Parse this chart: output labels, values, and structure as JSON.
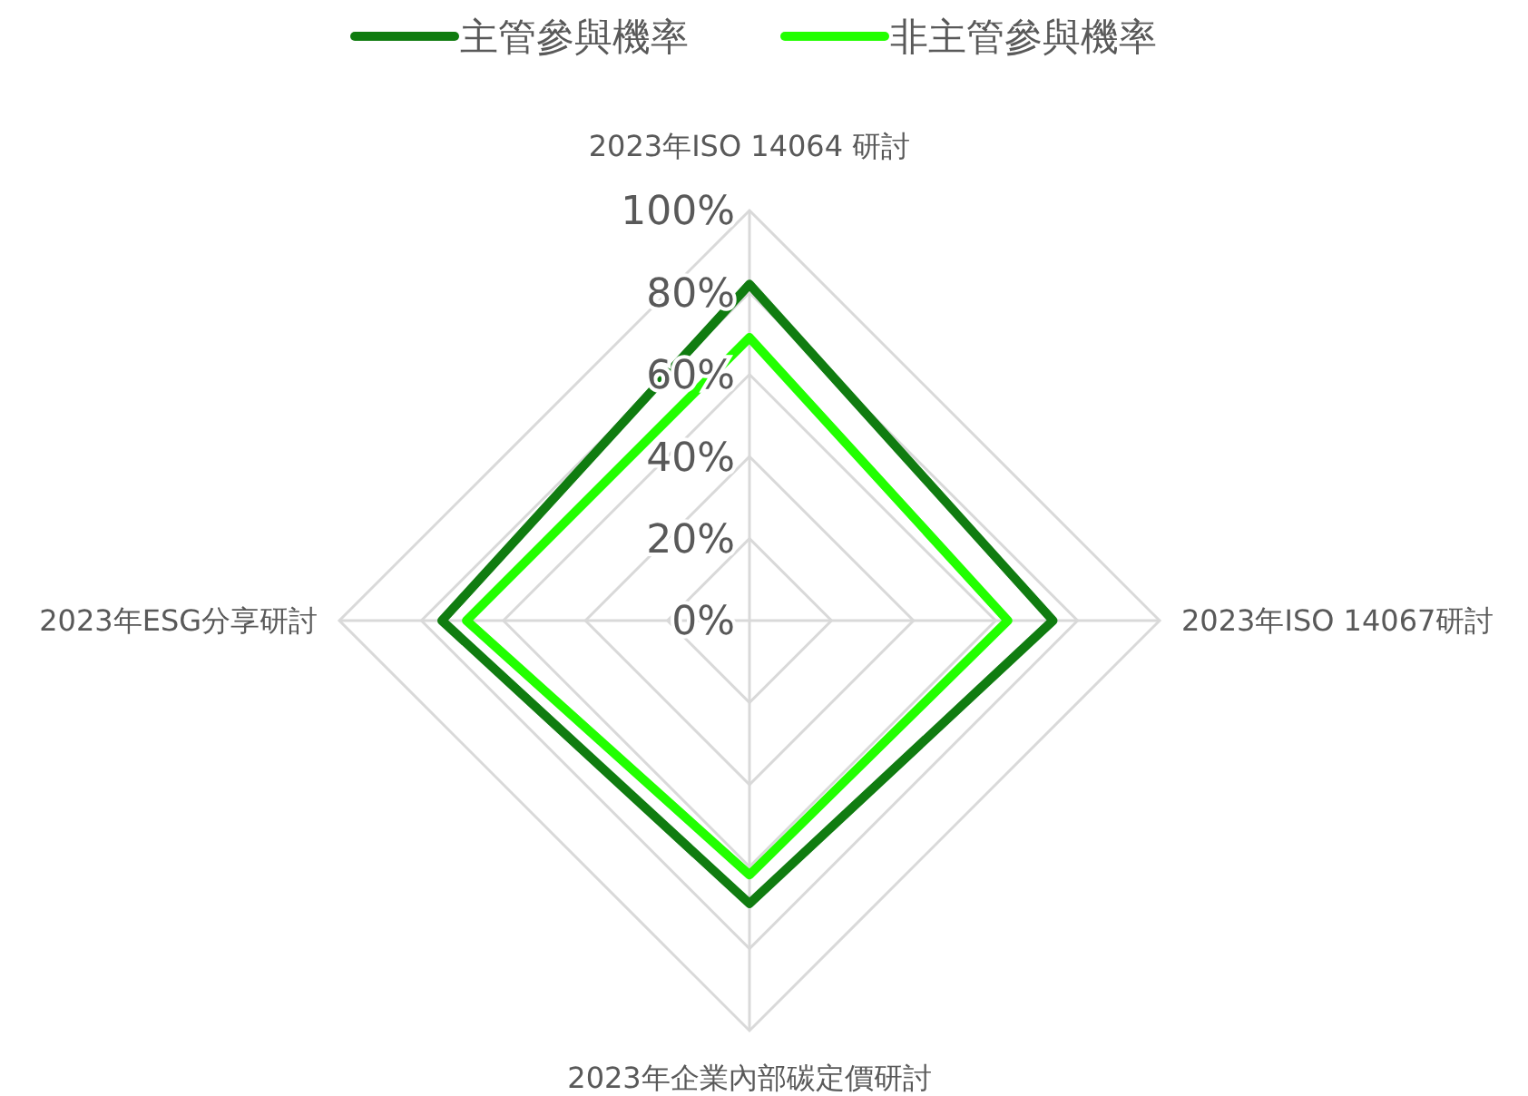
{
  "chart_data": {
    "type": "radar",
    "categories": [
      "2023年ISO 14064 研討",
      "2023年ISO 14067研討",
      "2023年企業內部碳定價研討",
      "2023年ESG分享研討"
    ],
    "series": [
      {
        "name": "主管參與機率",
        "color": "#107c10",
        "values": [
          82,
          74,
          69,
          75
        ]
      },
      {
        "name": "非主管參與機率",
        "color": "#22ff00",
        "values": [
          69,
          63,
          62,
          69
        ]
      }
    ],
    "ylim": [
      0,
      100
    ],
    "yticks": [
      {
        "value": 0,
        "label": "0%"
      },
      {
        "value": 20,
        "label": "20%"
      },
      {
        "value": 40,
        "label": "40%"
      },
      {
        "value": 60,
        "label": "60%"
      },
      {
        "value": 80,
        "label": "80%"
      },
      {
        "value": 100,
        "label": "100%"
      }
    ],
    "grid": true,
    "legend": "top",
    "marker": "none",
    "line_style": "solid"
  }
}
